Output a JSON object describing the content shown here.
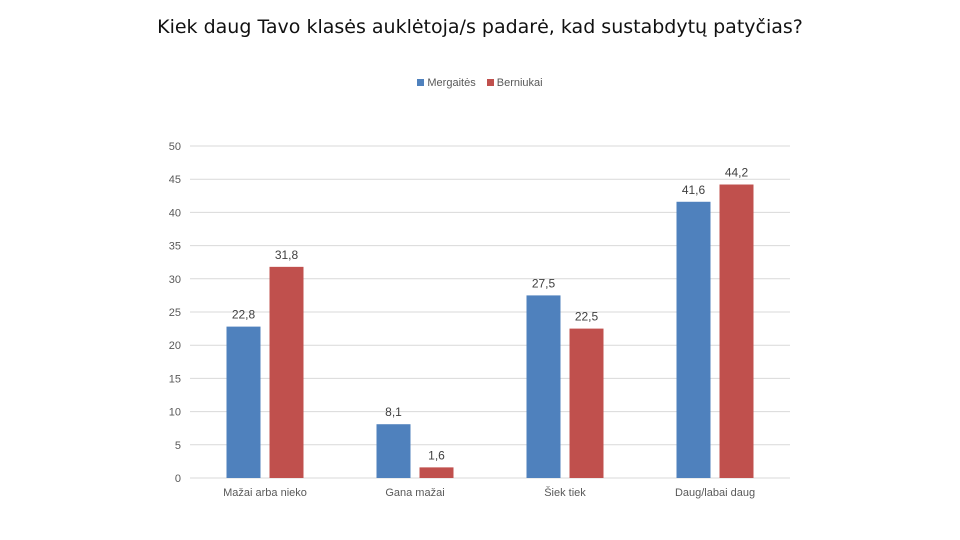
{
  "chart_data": {
    "type": "bar",
    "title": "Kiek daug Tavo klasės auklėtoja/s padarė, kad sustabdytų patyčias?",
    "categories": [
      "Mažai arba nieko",
      "Gana mažai",
      "Šiek tiek",
      "Daug/labai daug"
    ],
    "series": [
      {
        "name": "Mergaitės",
        "color": "#4f81bd",
        "values": [
          22.8,
          8.1,
          27.5,
          41.6
        ],
        "labels": [
          "22,8",
          "8,1",
          "27,5",
          "41,6"
        ]
      },
      {
        "name": "Berniukai",
        "color": "#c0504d",
        "values": [
          31.8,
          1.6,
          22.5,
          44.2
        ],
        "labels": [
          "31,8",
          "1,6",
          "22,5",
          "44,2"
        ]
      }
    ],
    "ylim": [
      0,
      50
    ],
    "yticks": [
      0,
      5,
      10,
      15,
      20,
      25,
      30,
      35,
      40,
      45,
      50
    ],
    "grid": true,
    "legend_position": "top"
  }
}
